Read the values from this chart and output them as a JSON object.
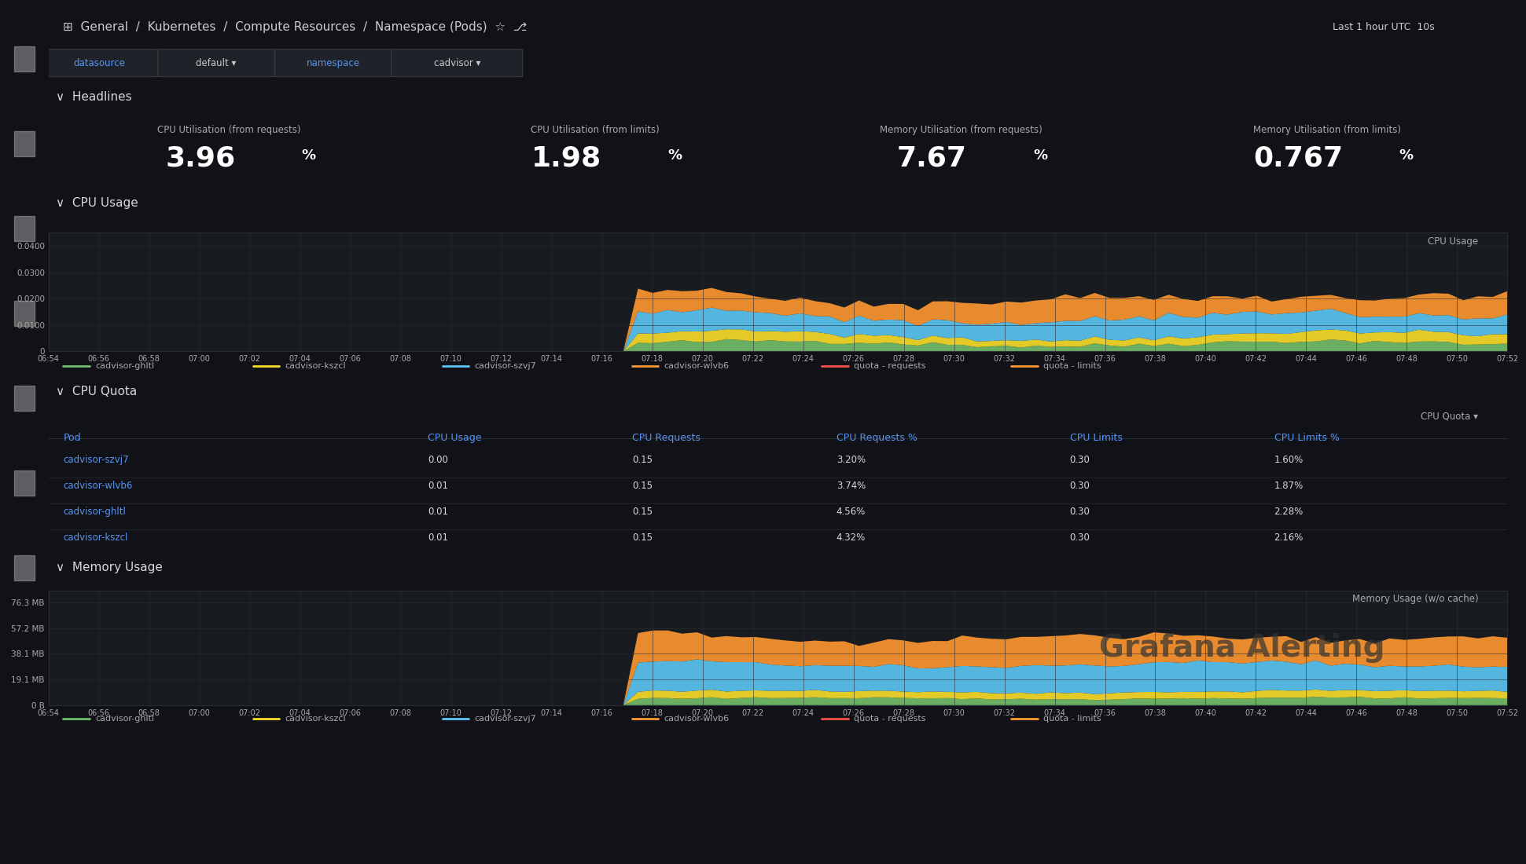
{
  "bg_color": "#111217",
  "panel_bg": "#181b1f",
  "panel_bg2": "#1f2229",
  "text_color": "#d8d9da",
  "blue_color": "#5794f2",
  "title": "General / Kubernetes / Compute Resources / Namespace (Pods)",
  "header_items": [
    "datasource",
    "default",
    "namespace",
    "cadvisor"
  ],
  "headlines_label": "Headlines",
  "stat_panels": [
    {
      "label": "CPU Utilisation (from requests)",
      "value": "3.96",
      "unit": "%"
    },
    {
      "label": "CPU Utilisation (from limits)",
      "value": "1.98",
      "unit": "%"
    },
    {
      "label": "Memory Utilisation (from requests)",
      "value": "7.67",
      "unit": "%"
    },
    {
      "label": "Memory Utilisation (from limits)",
      "value": "0.767",
      "unit": "%"
    }
  ],
  "cpu_usage_label": "CPU Usage",
  "cpu_chart_title": "CPU Usage",
  "cpu_yticks": [
    "0",
    "0.0100",
    "0.0200",
    "0.0300",
    "0.0400"
  ],
  "cpu_ytick_vals": [
    0,
    0.01,
    0.02,
    0.03,
    0.04
  ],
  "cpu_ylim": [
    0,
    0.045
  ],
  "time_labels": [
    "06:54",
    "06:56",
    "06:58",
    "07:00",
    "07:02",
    "07:04",
    "07:06",
    "07:08",
    "07:10",
    "07:12",
    "07:14",
    "07:16",
    "07:18",
    "07:20",
    "07:22",
    "07:24",
    "07:26",
    "07:28",
    "07:30",
    "07:32",
    "07:34",
    "07:36",
    "07:38",
    "07:40",
    "07:42",
    "07:44",
    "07:46",
    "07:48",
    "07:50",
    "07:52"
  ],
  "cpu_quota_title": "CPU Quota",
  "table_headers": [
    "Pod",
    "CPU Usage",
    "CPU Requests",
    "CPU Requests %",
    "CPU Limits",
    "CPU Limits %"
  ],
  "table_rows": [
    [
      "cadvisor-szvj7",
      "0.00",
      "0.15",
      "3.20%",
      "0.30",
      "1.60%"
    ],
    [
      "cadvisor-wlvb6",
      "0.01",
      "0.15",
      "3.74%",
      "0.30",
      "1.87%"
    ],
    [
      "cadvisor-ghltl",
      "0.01",
      "0.15",
      "4.56%",
      "0.30",
      "2.28%"
    ],
    [
      "cadvisor-kszcl",
      "0.01",
      "0.15",
      "4.32%",
      "0.30",
      "2.16%"
    ]
  ],
  "mem_chart_title": "Memory Usage (w/o cache)",
  "mem_yticks": [
    "0 B",
    "19.1 MB",
    "38.1 MB",
    "57.2 MB",
    "76.3 MB"
  ],
  "mem_ytick_vals": [
    0,
    19.1,
    38.1,
    57.2,
    76.3
  ],
  "mem_ylim": [
    0,
    85
  ],
  "watermark_text": "Grafana Alerting",
  "leg_items": [
    [
      "cadvisor-ghltl",
      "#73bf69"
    ],
    [
      "cadvisor-kszcl",
      "#fade2a"
    ],
    [
      "cadvisor-szvj7",
      "#5bc8f5"
    ],
    [
      "cadvisor-wlvb6",
      "#ff9830"
    ],
    [
      "quota - requests",
      "#f85149"
    ],
    [
      "quota - limits",
      "#ff9830"
    ]
  ]
}
